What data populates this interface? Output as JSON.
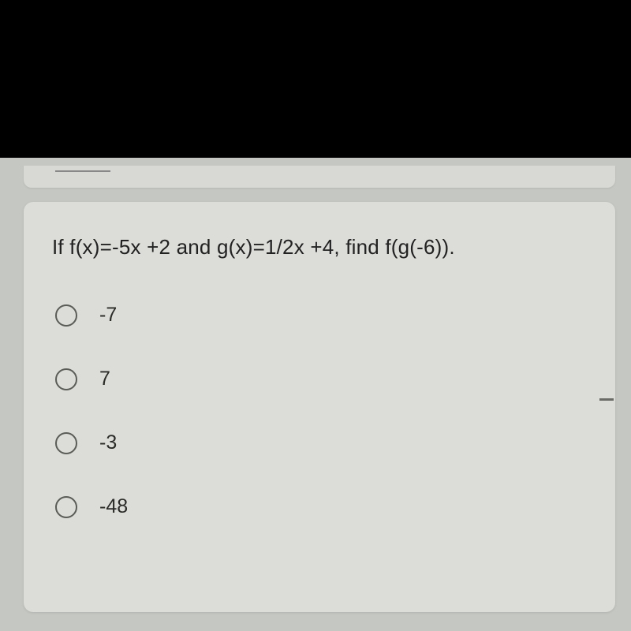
{
  "colors": {
    "page_bg": "#000000",
    "panel_bg": "#c5c7c3",
    "card_bg": "#dcddd8",
    "text": "#222222",
    "option_text": "#2b2c29",
    "radio_border": "#5a5c58"
  },
  "question": {
    "prompt": "If f(x)=-5x +2 and g(x)=1/2x +4, find f(g(-6)).",
    "options": [
      {
        "label": "-7",
        "selected": false
      },
      {
        "label": "7",
        "selected": false
      },
      {
        "label": "-3",
        "selected": false
      },
      {
        "label": "-48",
        "selected": false
      }
    ]
  }
}
